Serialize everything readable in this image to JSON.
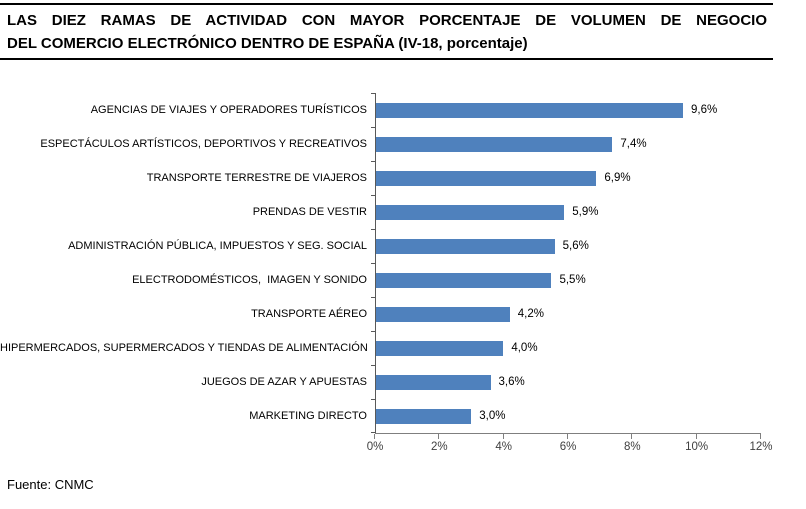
{
  "header": {
    "title_line1": "LAS DIEZ RAMAS DE ACTIVIDAD CON MAYOR PORCENTAJE DE VOLUMEN DE NEGOCIO",
    "title_line2": "DEL COMERCIO ELECTRÓNICO DENTRO DE ESPAÑA (IV-18, porcentaje)"
  },
  "chart_data": {
    "type": "bar",
    "orientation": "horizontal",
    "title": "LAS DIEZ RAMAS DE ACTIVIDAD CON MAYOR PORCENTAJE DE VOLUMEN DE NEGOCIO DEL COMERCIO ELECTRÓNICO DENTRO DE ESPAÑA (IV-18, porcentaje)",
    "categories": [
      "AGENCIAS DE VIAJES Y OPERADORES TURÍSTICOS",
      "ESPECTÁCULOS ARTÍSTICOS, DEPORTIVOS Y RECREATIVOS",
      "TRANSPORTE TERRESTRE DE VIAJEROS",
      "PRENDAS DE VESTIR",
      "ADMINISTRACIÓN PÚBLICA, IMPUESTOS Y SEG. SOCIAL",
      "ELECTRODOMÉSTICOS,  IMAGEN Y SONIDO",
      "TRANSPORTE AÉREO",
      "HIPERMERCADOS, SUPERMERCADOS Y TIENDAS DE ALIMENTACIÓN",
      "JUEGOS DE AZAR Y APUESTAS",
      "MARKETING DIRECTO"
    ],
    "values": [
      9.6,
      7.4,
      6.9,
      5.9,
      5.6,
      5.5,
      4.2,
      4.0,
      3.6,
      3.0
    ],
    "value_labels": [
      "9,6%",
      "7,4%",
      "6,9%",
      "5,9%",
      "5,6%",
      "5,5%",
      "4,2%",
      "4,0%",
      "3,6%",
      "3,0%"
    ],
    "xlabel": "",
    "ylabel": "",
    "xlim": [
      0,
      12
    ],
    "x_tick_step": 2,
    "x_tick_labels": [
      "0%",
      "2%",
      "4%",
      "6%",
      "8%",
      "10%",
      "12%"
    ],
    "bar_color": "#4F81BD",
    "grid": false,
    "legend": false
  },
  "footer": {
    "source": "Fuente: CNMC"
  }
}
